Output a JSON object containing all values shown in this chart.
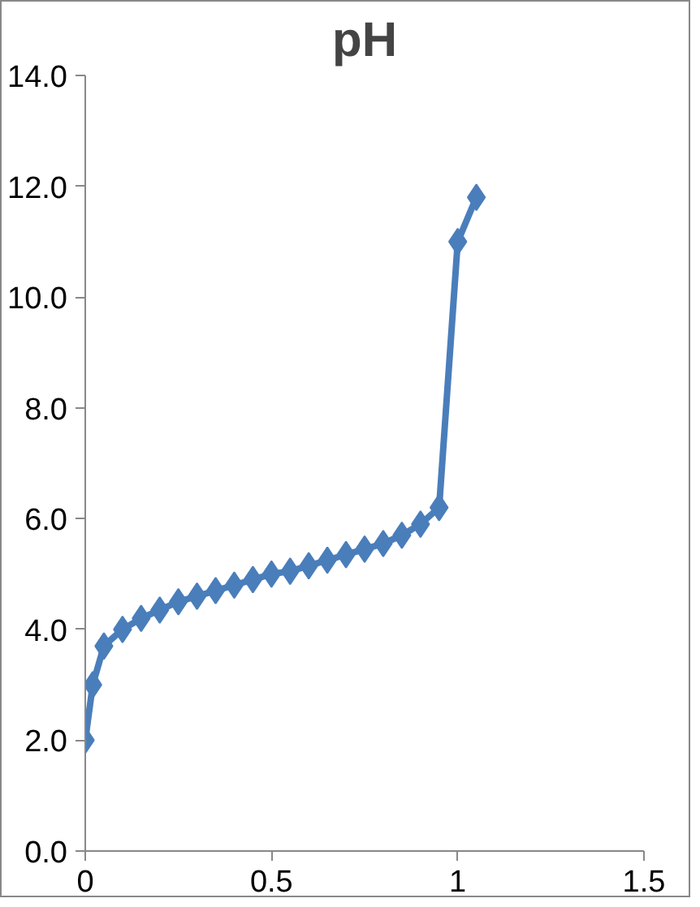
{
  "chart_data": {
    "type": "line",
    "title": "pH",
    "series": [
      {
        "color": "#4a7ebb",
        "x": [
          0,
          0.02,
          0.05,
          0.1,
          0.15,
          0.2,
          0.25,
          0.3,
          0.35,
          0.4,
          0.45,
          0.5,
          0.55,
          0.6,
          0.65,
          0.7,
          0.75,
          0.8,
          0.85,
          0.9,
          0.95,
          1.0,
          1.05
        ],
        "values": [
          2.0,
          3.0,
          3.7,
          4.0,
          4.2,
          4.35,
          4.5,
          4.6,
          4.7,
          4.8,
          4.9,
          5.0,
          5.05,
          5.15,
          5.25,
          5.35,
          5.45,
          5.55,
          5.7,
          5.9,
          6.2,
          11.0,
          11.8
        ]
      }
    ],
    "xlim": [
      0,
      1.5
    ],
    "xticks": [
      0,
      0.5,
      1,
      1.5
    ],
    "ylim": [
      0,
      14
    ],
    "yticks": [
      {
        "value": 0,
        "label": "0.0"
      },
      {
        "value": 2,
        "label": "2.0"
      },
      {
        "value": 4,
        "label": "4.0"
      },
      {
        "value": 6,
        "label": "6.0"
      },
      {
        "value": 8,
        "label": "8.0"
      },
      {
        "value": 10,
        "label": "10.0"
      },
      {
        "value": 12,
        "label": "12.0"
      },
      {
        "value": 14,
        "label": "14.0"
      }
    ],
    "grid": false,
    "marker": "diamond",
    "line_style": "solid"
  }
}
